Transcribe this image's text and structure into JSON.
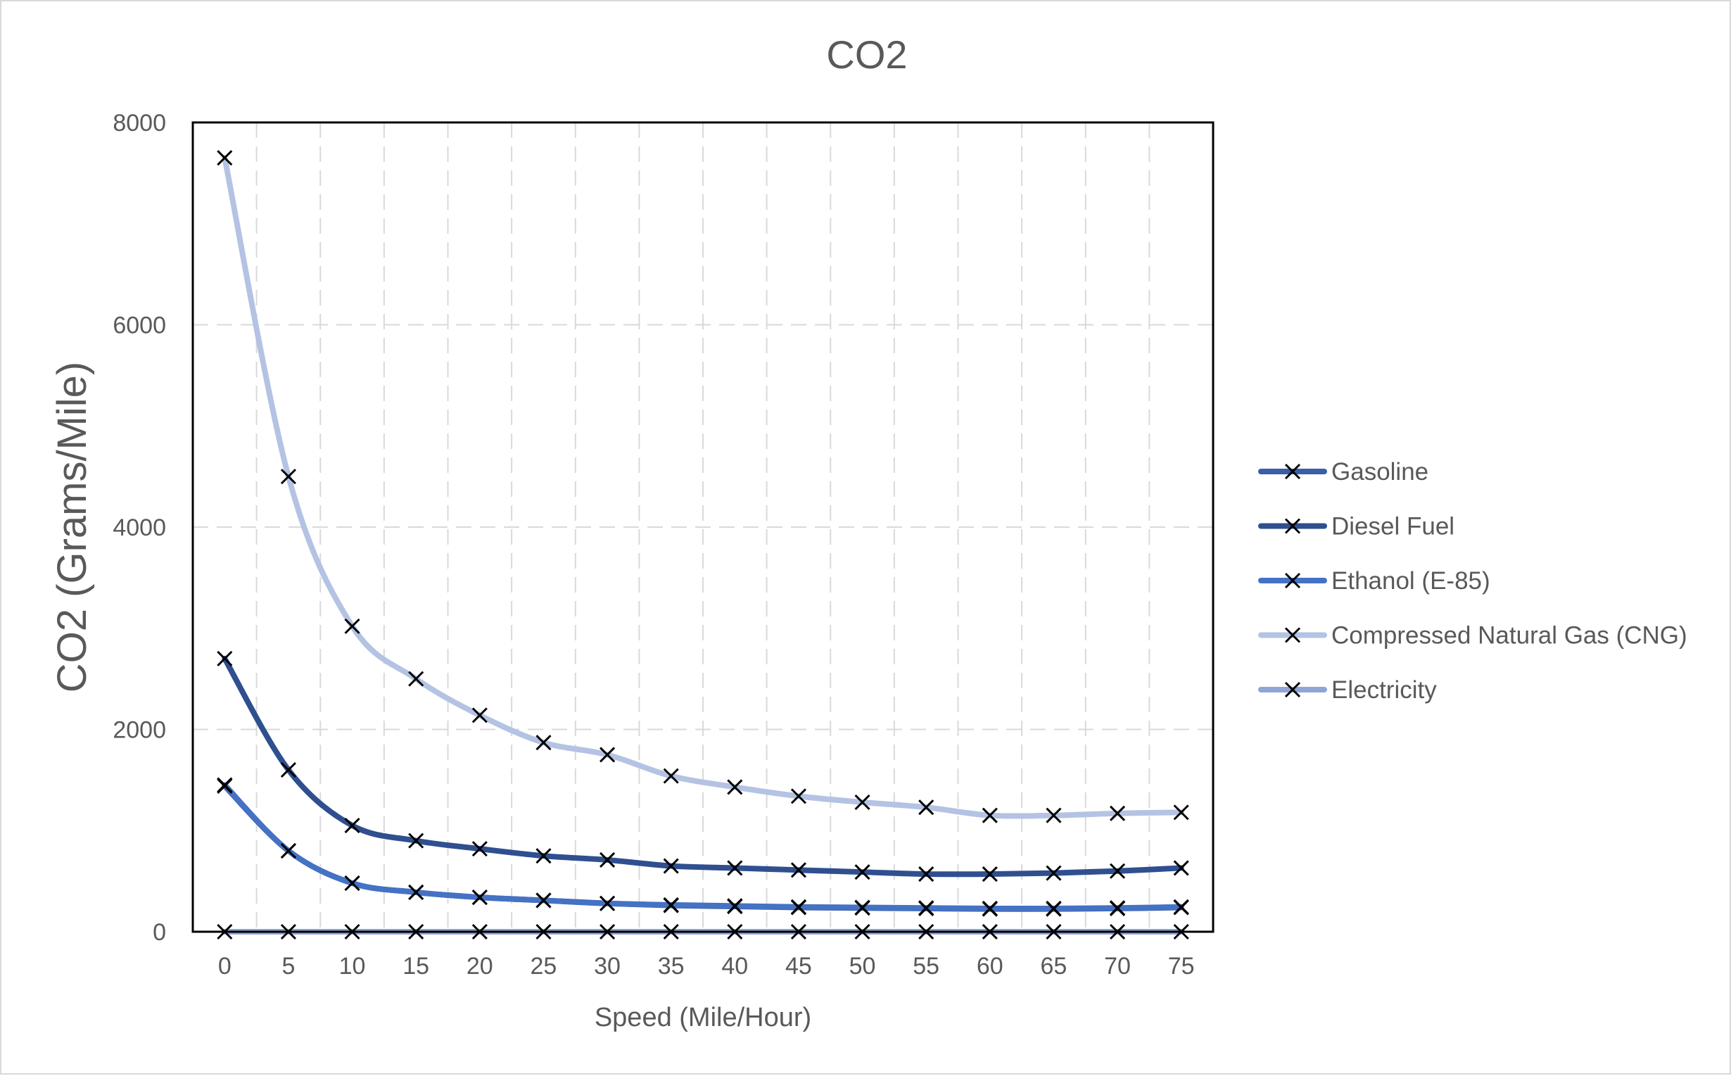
{
  "chart_data": {
    "type": "line",
    "title": "CO2",
    "xlabel": "Speed (Mile/Hour)",
    "ylabel": "CO2 (Grams/Mile)",
    "x": [
      0,
      5,
      10,
      15,
      20,
      25,
      30,
      35,
      40,
      45,
      50,
      55,
      60,
      65,
      70,
      75
    ],
    "x_tick_labels": [
      "0",
      "5",
      "10",
      "15",
      "20",
      "25",
      "30",
      "35",
      "40",
      "45",
      "50",
      "55",
      "60",
      "65",
      "70",
      "75"
    ],
    "ylim": [
      0,
      8000
    ],
    "y_ticks": [
      0,
      2000,
      4000,
      6000,
      8000
    ],
    "y_tick_labels": [
      "0",
      "2000",
      "4000",
      "6000",
      "8000"
    ],
    "grid": true,
    "legend_position": "right",
    "marker": "x",
    "series": [
      {
        "name": "Gasoline",
        "color": "#3a5ea8",
        "values": [
          1440,
          800,
          480,
          390,
          340,
          310,
          280,
          260,
          250,
          240,
          235,
          230,
          225,
          225,
          230,
          240
        ]
      },
      {
        "name": "Diesel Fuel",
        "color": "#2f4f8f",
        "values": [
          2700,
          1600,
          1050,
          900,
          820,
          750,
          710,
          650,
          630,
          610,
          590,
          570,
          570,
          580,
          600,
          630
        ]
      },
      {
        "name": "Ethanol (E-85)",
        "color": "#4472c4",
        "values": [
          1450,
          800,
          480,
          390,
          340,
          310,
          280,
          265,
          255,
          245,
          240,
          235,
          230,
          230,
          235,
          245
        ]
      },
      {
        "name": "Compressed Natural Gas (CNG)",
        "color": "#b4c3e3",
        "values": [
          7650,
          4500,
          3020,
          2500,
          2140,
          1870,
          1750,
          1540,
          1430,
          1340,
          1280,
          1230,
          1150,
          1150,
          1170,
          1180
        ]
      },
      {
        "name": "Electricity",
        "color": "#8fa5d6",
        "values": [
          0,
          0,
          0,
          0,
          0,
          0,
          0,
          0,
          0,
          0,
          0,
          0,
          0,
          0,
          0,
          0
        ]
      }
    ]
  }
}
